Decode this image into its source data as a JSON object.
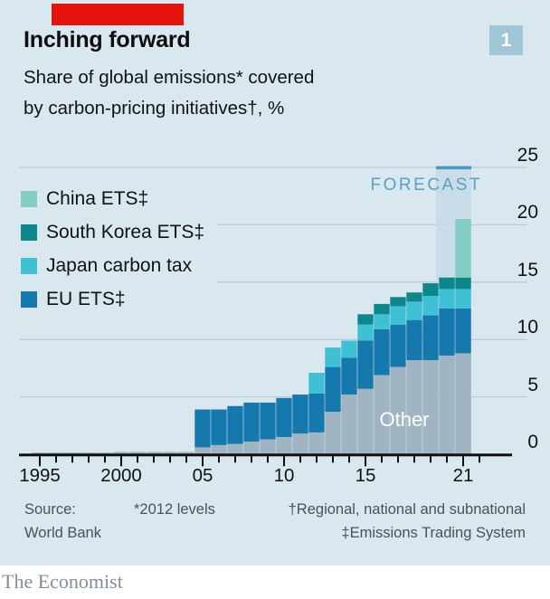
{
  "header": {
    "title": "Inching forward",
    "subtitle_line1": "Share of global emissions* covered",
    "subtitle_line2": "by carbon-pricing initiatives†, %",
    "chart_number": "1"
  },
  "forecast_label": "FORECAST",
  "other_label": "Other",
  "footer": {
    "source_line1": "Source:",
    "source_line2": "World Bank",
    "note_levels": "*2012 levels",
    "note_dagger": "†Regional, national and subnational",
    "note_ddagger": "‡Emissions Trading System",
    "brand": "The Economist"
  },
  "colors": {
    "background": "#d9e8ef",
    "red_tab": "#e3120b",
    "badge": "#a0c7d8",
    "gridline": "#bac8d1",
    "axis": "#0f0f0f",
    "forecast_band": "#c6dbe7",
    "forecast_cap": "#4799c4",
    "forecast_text": "#5b9fc3",
    "other_gray": "#a0b5c1",
    "eu_blue": "#1679ae",
    "japan_cyan": "#3fc0d5",
    "korea_teal": "#0e878c",
    "china_seafoam": "#84ccc4"
  },
  "chart_data": {
    "type": "bar",
    "variant": "stacked-column",
    "title": "Inching forward",
    "subtitle": "Share of global emissions* covered by carbon-pricing initiatives†, %",
    "unit": "%",
    "ylim": [
      0,
      25
    ],
    "xlim": [
      1995,
      2022
    ],
    "grid": "horizontal",
    "legend_position": "top-left-inside",
    "x": [
      1995,
      1996,
      1997,
      1998,
      1999,
      2000,
      2001,
      2002,
      2003,
      2004,
      2005,
      2006,
      2007,
      2008,
      2009,
      2010,
      2011,
      2012,
      2013,
      2014,
      2015,
      2016,
      2017,
      2018,
      2019,
      2020,
      2021
    ],
    "series": [
      {
        "name": "Other",
        "color": "#a0b5c1",
        "values": [
          0.15,
          0.15,
          0.15,
          0.15,
          0.15,
          0.2,
          0.2,
          0.2,
          0.2,
          0.2,
          0.6,
          0.8,
          0.9,
          1.1,
          1.3,
          1.5,
          1.8,
          1.9,
          3.7,
          5.2,
          5.7,
          6.9,
          7.6,
          8.2,
          8.2,
          8.6,
          8.8
        ]
      },
      {
        "name": "EU ETS‡",
        "color": "#1679ae",
        "values": [
          0,
          0,
          0,
          0,
          0,
          0,
          0,
          0,
          0,
          0,
          3.3,
          3.1,
          3.3,
          3.4,
          3.2,
          3.4,
          3.4,
          3.4,
          3.9,
          3.2,
          4.2,
          4.0,
          3.7,
          3.5,
          3.9,
          4.1,
          3.9
        ]
      },
      {
        "name": "Japan carbon tax",
        "color": "#3fc0d5",
        "values": [
          0,
          0,
          0,
          0,
          0,
          0,
          0,
          0,
          0,
          0,
          0,
          0,
          0,
          0,
          0,
          0,
          0,
          1.8,
          1.7,
          1.5,
          1.4,
          1.3,
          1.6,
          1.6,
          1.7,
          1.7,
          1.7
        ]
      },
      {
        "name": "South Korea ETS‡",
        "color": "#0e878c",
        "values": [
          0,
          0,
          0,
          0,
          0,
          0,
          0,
          0,
          0,
          0,
          0,
          0,
          0,
          0,
          0,
          0,
          0,
          0,
          0,
          0,
          0.9,
          0.9,
          0.8,
          0.8,
          1.1,
          1.0,
          1.0
        ]
      },
      {
        "name": "China ETS‡",
        "color": "#84ccc4",
        "values": [
          0,
          0,
          0,
          0,
          0,
          0,
          0,
          0,
          0,
          0,
          0,
          0,
          0,
          0,
          0,
          0,
          0,
          0,
          0,
          0,
          0,
          0,
          0,
          0,
          0,
          0,
          5.1
        ]
      }
    ],
    "totals_selected": {
      "2012": 7.1,
      "2015": 12.2,
      "2020": 15.4,
      "2021": 20.5
    },
    "forecast_years": [
      2020,
      2021
    ],
    "yticks": [
      0,
      5,
      10,
      15,
      20,
      25
    ],
    "xticks": [
      {
        "label": "1995",
        "year": 1995
      },
      {
        "label": "2000",
        "year": 2000
      },
      {
        "label": "05",
        "year": 2005
      },
      {
        "label": "10",
        "year": 2010
      },
      {
        "label": "15",
        "year": 2015
      },
      {
        "label": "21",
        "year": 2021
      }
    ],
    "legend": [
      {
        "label": "China ETS‡",
        "color": "#84ccc4"
      },
      {
        "label": "South Korea ETS‡",
        "color": "#0e878c"
      },
      {
        "label": "Japan carbon tax",
        "color": "#3fc0d5"
      },
      {
        "label": "EU ETS‡",
        "color": "#1679ae"
      }
    ]
  }
}
